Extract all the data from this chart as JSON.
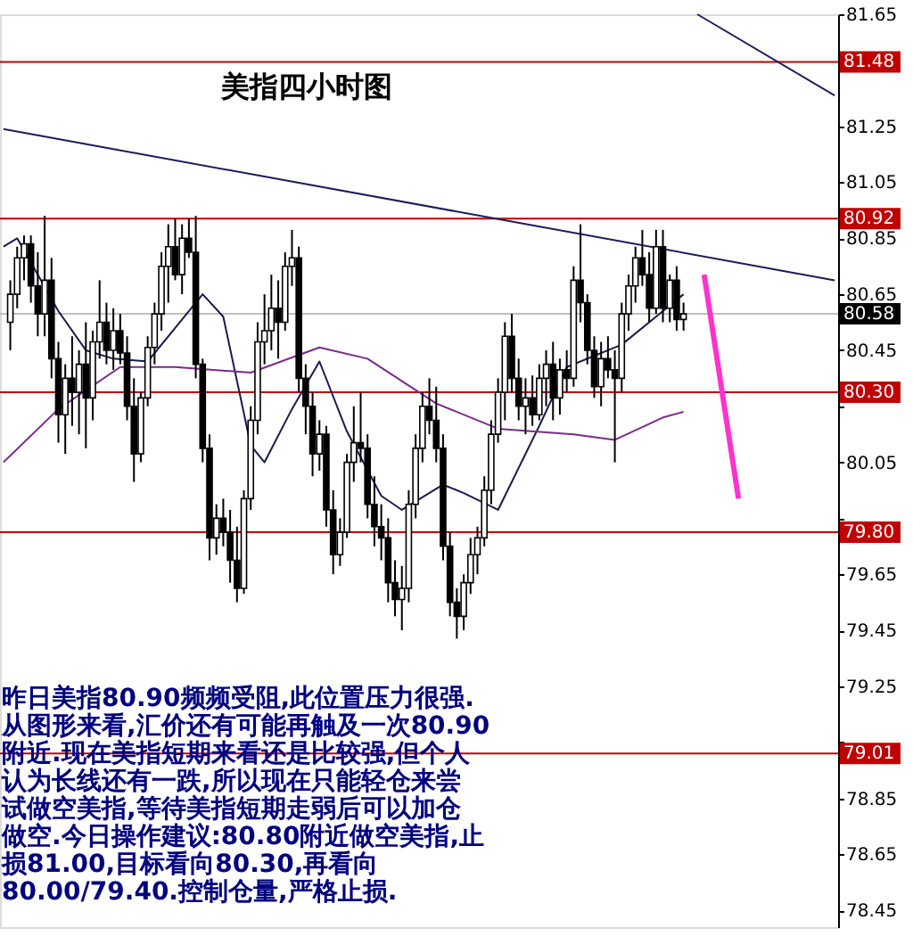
{
  "chart_data": {
    "type": "candlestick",
    "title": "美指四小时图",
    "annotations": [
      "昨日美指80.90频频受阻,此位置压力很强.",
      "从图形来看,汇价还有可能再触及一次80.90",
      "附近.现在美指短期来看还是比较强,但个人",
      "认为长线还有一跌,所以现在只能轻仓来尝",
      "试做空美指,等待美指短期走弱后可以加仓",
      "做空.今日操作建议:80.80附近做空美指,止",
      "损81.00,目标看向80.30,再看向",
      "80.00/79.40.控制仓量,严格止损."
    ],
    "categories": [
      null,
      null,
      null,
      null,
      null,
      null,
      null,
      null,
      null,
      null,
      null,
      null,
      null,
      null,
      null,
      null,
      null,
      null,
      null,
      null,
      null,
      null,
      null,
      null,
      null,
      null,
      null,
      null,
      null,
      null,
      null,
      null,
      null,
      null,
      null,
      null,
      null,
      null,
      null,
      null,
      null,
      null,
      null,
      null,
      null,
      null,
      null,
      null,
      null,
      null,
      null,
      null,
      null,
      null,
      null,
      null,
      null,
      null,
      null,
      null,
      null,
      null,
      null,
      null,
      null,
      null,
      null,
      null,
      null,
      null,
      null,
      null,
      null,
      null,
      null,
      null,
      null,
      null,
      null,
      null,
      null,
      null,
      null,
      null,
      null,
      null,
      null,
      null,
      null,
      null,
      null,
      null,
      null,
      null,
      null,
      null,
      null,
      null,
      null,
      null,
      null,
      null,
      null,
      null,
      null,
      null,
      null,
      null,
      null,
      null,
      null,
      null,
      null,
      null,
      null,
      null,
      null,
      null,
      null,
      null,
      null,
      null
    ],
    "ohlc": [
      null,
      [
        80.55,
        80.7,
        80.45,
        80.65
      ],
      [
        80.65,
        80.82,
        80.6,
        80.78
      ],
      [
        80.78,
        80.86,
        80.7,
        80.83
      ],
      [
        80.83,
        80.86,
        80.62,
        80.68
      ],
      [
        80.68,
        80.8,
        80.5,
        80.58
      ],
      [
        80.58,
        80.93,
        80.5,
        80.7
      ],
      [
        80.7,
        80.78,
        80.35,
        80.42
      ],
      [
        80.42,
        80.48,
        80.12,
        80.22
      ],
      [
        80.22,
        80.4,
        80.08,
        80.35
      ],
      [
        80.35,
        80.5,
        80.18,
        80.3
      ],
      [
        80.3,
        80.45,
        80.15,
        80.4
      ],
      [
        80.4,
        80.55,
        80.1,
        80.28
      ],
      [
        80.28,
        80.52,
        80.2,
        80.48
      ],
      [
        80.48,
        80.7,
        80.42,
        80.55
      ],
      [
        80.55,
        80.62,
        80.4,
        80.45
      ],
      [
        80.45,
        80.6,
        80.38,
        80.52
      ],
      [
        80.52,
        80.58,
        80.4,
        80.44
      ],
      [
        80.44,
        80.5,
        80.2,
        80.25
      ],
      [
        80.25,
        80.35,
        79.98,
        80.08
      ],
      [
        80.08,
        80.3,
        80.05,
        80.28
      ],
      [
        80.28,
        80.5,
        80.25,
        80.46
      ],
      [
        80.46,
        80.62,
        80.4,
        80.58
      ],
      [
        80.58,
        80.8,
        80.52,
        80.75
      ],
      [
        80.75,
        80.9,
        80.62,
        80.82
      ],
      [
        80.82,
        80.92,
        80.7,
        80.72
      ],
      [
        80.72,
        80.9,
        80.65,
        80.85
      ],
      [
        80.85,
        80.92,
        80.78,
        80.8
      ],
      [
        80.8,
        80.93,
        80.35,
        80.4
      ],
      [
        80.4,
        80.42,
        80.05,
        80.1
      ],
      [
        80.1,
        80.15,
        79.7,
        79.78
      ],
      [
        79.78,
        79.9,
        79.72,
        79.85
      ],
      [
        79.85,
        79.92,
        79.75,
        79.8
      ],
      [
        79.8,
        79.88,
        79.62,
        79.7
      ],
      [
        79.7,
        79.82,
        79.55,
        79.6
      ],
      [
        79.6,
        79.95,
        79.58,
        79.92
      ],
      [
        79.92,
        80.25,
        79.88,
        80.2
      ],
      [
        80.2,
        80.55,
        80.15,
        80.48
      ],
      [
        80.48,
        80.65,
        80.4,
        80.52
      ],
      [
        80.52,
        80.72,
        80.45,
        80.6
      ],
      [
        80.6,
        80.7,
        80.42,
        80.55
      ],
      [
        80.55,
        80.8,
        80.52,
        80.75
      ],
      [
        80.75,
        80.88,
        80.68,
        80.78
      ],
      [
        80.78,
        80.82,
        80.3,
        80.35
      ],
      [
        80.35,
        80.4,
        80.15,
        80.25
      ],
      [
        80.25,
        80.3,
        80.0,
        80.08
      ],
      [
        80.08,
        80.2,
        80.02,
        80.15
      ],
      [
        80.15,
        80.18,
        79.82,
        79.88
      ],
      [
        79.88,
        79.95,
        79.65,
        79.72
      ],
      [
        79.72,
        79.85,
        79.68,
        79.8
      ],
      [
        79.8,
        80.08,
        79.78,
        80.05
      ],
      [
        80.05,
        80.25,
        79.98,
        80.12
      ],
      [
        80.12,
        80.3,
        80.05,
        80.1
      ],
      [
        80.1,
        80.15,
        79.85,
        79.9
      ],
      [
        79.9,
        80.0,
        79.75,
        79.82
      ],
      [
        79.82,
        79.9,
        79.7,
        79.78
      ],
      [
        79.78,
        79.85,
        79.55,
        79.62
      ],
      [
        79.62,
        79.7,
        79.5,
        79.56
      ],
      [
        79.56,
        79.68,
        79.45,
        79.6
      ],
      [
        79.6,
        79.95,
        79.55,
        79.9
      ],
      [
        79.9,
        80.15,
        79.85,
        80.1
      ],
      [
        80.1,
        80.3,
        80.05,
        80.25
      ],
      [
        80.25,
        80.35,
        80.15,
        80.2
      ],
      [
        80.2,
        80.32,
        80.05,
        80.1
      ],
      [
        80.1,
        80.15,
        79.7,
        79.75
      ],
      [
        79.75,
        79.8,
        79.5,
        79.55
      ],
      [
        79.55,
        79.6,
        79.42,
        79.5
      ],
      [
        79.5,
        79.65,
        79.45,
        79.62
      ],
      [
        79.62,
        79.78,
        79.58,
        79.72
      ],
      [
        79.72,
        79.82,
        79.65,
        79.78
      ],
      [
        79.78,
        80.0,
        79.75,
        79.95
      ],
      [
        79.95,
        80.2,
        79.9,
        80.15
      ],
      [
        80.15,
        80.35,
        80.12,
        80.3
      ],
      [
        80.3,
        80.55,
        80.2,
        80.5
      ],
      [
        80.5,
        80.58,
        80.3,
        80.35
      ],
      [
        80.35,
        80.42,
        80.2,
        80.25
      ],
      [
        80.25,
        80.35,
        80.15,
        80.28
      ],
      [
        80.28,
        80.36,
        80.18,
        80.22
      ],
      [
        80.22,
        80.4,
        80.2,
        80.35
      ],
      [
        80.35,
        80.45,
        80.25,
        80.4
      ],
      [
        80.4,
        80.48,
        80.2,
        80.28
      ],
      [
        80.28,
        80.42,
        80.22,
        80.38
      ],
      [
        80.38,
        80.45,
        80.3,
        80.35
      ],
      [
        80.35,
        80.75,
        80.32,
        80.7
      ],
      [
        80.7,
        80.9,
        80.55,
        80.62
      ],
      [
        80.62,
        80.65,
        80.4,
        80.45
      ],
      [
        80.45,
        80.5,
        80.28,
        80.32
      ],
      [
        80.32,
        80.48,
        80.25,
        80.42
      ],
      [
        80.42,
        80.5,
        80.35,
        80.38
      ],
      [
        80.38,
        80.45,
        80.05,
        80.35
      ],
      [
        80.35,
        80.62,
        80.3,
        80.58
      ],
      [
        80.58,
        80.72,
        80.52,
        80.68
      ],
      [
        80.68,
        80.82,
        80.62,
        80.78
      ],
      [
        80.78,
        80.88,
        80.68,
        80.72
      ],
      [
        80.72,
        80.8,
        80.55,
        80.6
      ],
      [
        80.6,
        80.88,
        80.58,
        80.82
      ],
      [
        80.82,
        80.88,
        80.55,
        80.6
      ],
      [
        80.6,
        80.72,
        80.55,
        80.7
      ],
      [
        80.7,
        80.75,
        80.52,
        80.56
      ],
      [
        80.56,
        80.62,
        80.52,
        80.58
      ],
      null,
      null,
      null,
      null,
      null,
      null,
      null,
      null,
      null,
      null,
      null,
      null,
      null,
      null,
      null,
      null,
      null,
      null,
      null,
      null,
      null,
      null
    ],
    "series": [
      {
        "type": "line",
        "color": "#1a1a50",
        "values": [
          80.82,
          null,
          80.85,
          null,
          null,
          null,
          null,
          null,
          80.59,
          null,
          null,
          null,
          80.45,
          null,
          null,
          null,
          80.42,
          null,
          null,
          null,
          null,
          80.41,
          null,
          null,
          null,
          80.53,
          null,
          null,
          null,
          80.65,
          null,
          null,
          80.57,
          null,
          null,
          null,
          80.11,
          null,
          80.05,
          null,
          null,
          null,
          80.24,
          null,
          null,
          null,
          80.41,
          null,
          null,
          null,
          80.16,
          null,
          null,
          null,
          null,
          79.93,
          null,
          null,
          79.88,
          null,
          null,
          null,
          null,
          null,
          79.97,
          null,
          null,
          79.94,
          null,
          null,
          null,
          null,
          79.88,
          null,
          null,
          null,
          null,
          null,
          80.18,
          null,
          null,
          null,
          80.39,
          null,
          null,
          null,
          null,
          null,
          null,
          null,
          80.47,
          null,
          null,
          null,
          null,
          80.57,
          null,
          null,
          null,
          80.65,
          null,
          null,
          null,
          null,
          null,
          null,
          null,
          null,
          null,
          null,
          null,
          null,
          null,
          null,
          null,
          null,
          null,
          null,
          null,
          null,
          null,
          null
        ]
      },
      {
        "type": "line",
        "color": "#7b2a8c",
        "values": [
          80.05,
          null,
          null,
          null,
          null,
          null,
          null,
          null,
          80.24,
          null,
          null,
          null,
          null,
          null,
          null,
          null,
          null,
          80.39,
          null,
          null,
          null,
          null,
          null,
          null,
          null,
          80.39,
          null,
          null,
          null,
          null,
          null,
          null,
          null,
          null,
          null,
          null,
          80.37,
          null,
          null,
          null,
          null,
          null,
          null,
          null,
          null,
          null,
          80.46,
          null,
          null,
          null,
          null,
          null,
          null,
          80.42,
          null,
          null,
          null,
          null,
          null,
          null,
          null,
          null,
          null,
          80.26,
          null,
          null,
          null,
          null,
          null,
          null,
          null,
          null,
          80.17,
          null,
          null,
          null,
          null,
          null,
          null,
          null,
          null,
          null,
          null,
          80.15,
          null,
          null,
          null,
          null,
          null,
          80.13,
          null,
          null,
          null,
          null,
          null,
          null,
          80.21,
          null,
          null,
          80.23,
          null,
          null,
          null,
          null,
          null,
          null,
          null,
          null,
          null,
          null,
          null,
          null,
          null,
          null,
          null,
          null,
          null,
          null,
          null,
          null,
          null,
          null
        ]
      },
      {
        "type": "line",
        "color": "#1c1c5c",
        "values": [
          81.24,
          null,
          null,
          null,
          null,
          null,
          null,
          null,
          null,
          null,
          null,
          null,
          null,
          null,
          null,
          null,
          null,
          null,
          null,
          null,
          null,
          null,
          null,
          null,
          null,
          null,
          null,
          null,
          null,
          null,
          null,
          null,
          null,
          null,
          null,
          null,
          null,
          null,
          null,
          null,
          null,
          null,
          null,
          null,
          null,
          null,
          null,
          null,
          null,
          null,
          null,
          null,
          null,
          null,
          null,
          null,
          null,
          null,
          null,
          null,
          null,
          null,
          null,
          null,
          null,
          null,
          null,
          null,
          null,
          null,
          null,
          null,
          null,
          null,
          null,
          null,
          null,
          null,
          null,
          null,
          null,
          null,
          null,
          null,
          null,
          null,
          null,
          null,
          null,
          null,
          null,
          null,
          null,
          null,
          null,
          null,
          null,
          null,
          null,
          null,
          null,
          null,
          null,
          null,
          null,
          null,
          null,
          null,
          null,
          null,
          null,
          null,
          null,
          null,
          null,
          null,
          null,
          null,
          null,
          null,
          null,
          80.7
        ]
      },
      {
        "type": "line",
        "color": "#1c1c5c",
        "values": [
          null,
          null,
          null,
          null,
          null,
          null,
          null,
          null,
          null,
          null,
          null,
          null,
          null,
          null,
          null,
          null,
          null,
          null,
          null,
          null,
          null,
          null,
          null,
          null,
          null,
          null,
          null,
          null,
          null,
          null,
          null,
          null,
          null,
          null,
          null,
          null,
          null,
          null,
          null,
          null,
          null,
          null,
          null,
          null,
          null,
          null,
          null,
          null,
          null,
          null,
          null,
          null,
          null,
          null,
          null,
          null,
          null,
          null,
          null,
          null,
          null,
          null,
          null,
          null,
          null,
          null,
          null,
          null,
          null,
          null,
          null,
          null,
          null,
          null,
          null,
          null,
          null,
          null,
          null,
          null,
          null,
          null,
          null,
          null,
          null,
          null,
          null,
          null,
          null,
          null,
          null,
          null,
          null,
          null,
          null,
          null,
          null,
          null,
          null,
          null,
          null,
          81.65,
          null,
          null,
          null,
          null,
          null,
          null,
          null,
          null,
          null,
          null,
          null,
          null,
          null,
          null,
          null,
          null,
          null,
          null,
          null,
          81.36
        ]
      },
      {
        "type": "line",
        "color": "#ff33cc",
        "values": [
          null,
          null,
          null,
          null,
          null,
          null,
          null,
          null,
          null,
          null,
          null,
          null,
          null,
          null,
          null,
          null,
          null,
          null,
          null,
          null,
          null,
          null,
          null,
          null,
          null,
          null,
          null,
          null,
          null,
          null,
          null,
          null,
          null,
          null,
          null,
          null,
          null,
          null,
          null,
          null,
          null,
          null,
          null,
          null,
          null,
          null,
          null,
          null,
          null,
          null,
          null,
          null,
          null,
          null,
          null,
          null,
          null,
          null,
          null,
          null,
          null,
          null,
          null,
          null,
          null,
          null,
          null,
          null,
          null,
          null,
          null,
          null,
          null,
          null,
          null,
          null,
          null,
          null,
          null,
          null,
          null,
          null,
          null,
          null,
          null,
          null,
          null,
          null,
          null,
          null,
          null,
          null,
          null,
          null,
          null,
          null,
          null,
          null,
          null,
          null,
          null,
          null,
          80.72,
          null,
          null,
          null,
          null,
          79.92,
          null,
          null,
          null,
          null,
          null,
          null,
          null,
          null,
          null,
          null,
          null,
          null,
          null,
          null
        ]
      }
    ],
    "ylim": [
      78.39,
      81.65
    ],
    "yticks": [
      78.45,
      78.65,
      78.85,
      {
        "value": 79.05,
        "label": null
      },
      79.25,
      79.45,
      79.65,
      {
        "value": 79.85,
        "label": null
      },
      80.05,
      {
        "value": 80.25,
        "label": null
      },
      80.45,
      80.65,
      80.85,
      81.05,
      81.25,
      {
        "value": 81.45,
        "label": null
      },
      81.65
    ],
    "ref_lines": [
      {
        "axis": "y",
        "value": 81.48,
        "label": "81.48",
        "color": "#c00000"
      },
      {
        "axis": "y",
        "value": 80.92,
        "label": "80.92",
        "color": "#c00000"
      },
      {
        "axis": "y",
        "value": 80.58,
        "label": "80.58",
        "color": "#c0c0c0"
      },
      {
        "axis": "y",
        "value": 80.3,
        "label": "80.30",
        "color": "#c00000"
      },
      {
        "axis": "y",
        "value": 79.8,
        "label": "79.80",
        "color": "#c00000"
      },
      {
        "axis": "y",
        "value": 79.01,
        "label": "79.01",
        "color": "#c00000"
      }
    ],
    "grid": false,
    "tick_labels": "y"
  }
}
